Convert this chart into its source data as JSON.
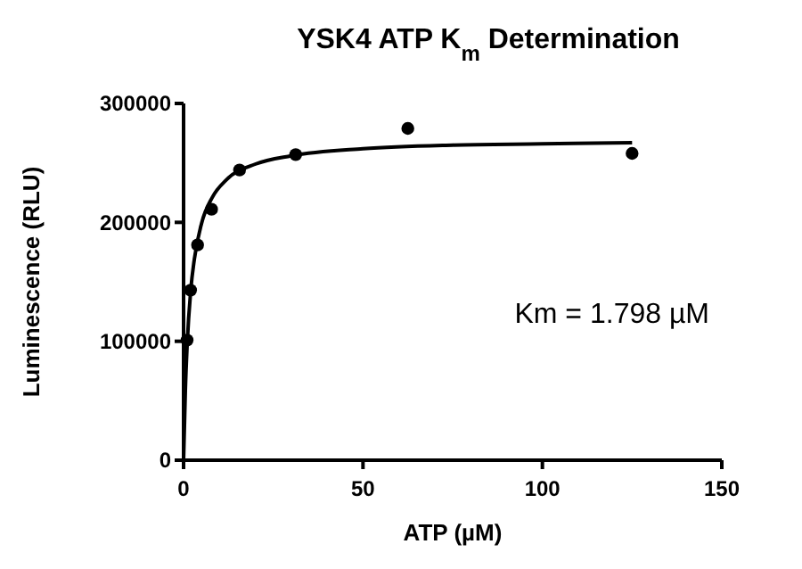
{
  "chart_data": {
    "type": "scatter",
    "title": "YSK4 ATP K$_{m}$ Determination",
    "xlabel": "ATP (µM)",
    "ylabel": "Luminescence (RLU)",
    "xlim": [
      0,
      150
    ],
    "xticks": [
      0,
      50,
      100,
      150
    ],
    "ylim": [
      0,
      300000
    ],
    "yticks": [
      0,
      100000,
      200000,
      300000
    ],
    "grid": false,
    "marker": "circle",
    "series": [
      {
        "color": "#000000",
        "x": [
          0.98,
          1.95,
          3.9,
          7.8,
          15.6,
          31.25,
          62.5,
          125
        ],
        "values": [
          101000,
          143000,
          181000,
          211000,
          244000,
          257000,
          279000,
          258000
        ]
      },
      {
        "type": "line",
        "color": "#000000",
        "marker": "none",
        "x": [
          0,
          0.5,
          1,
          2,
          3,
          5,
          8,
          12,
          20,
          30,
          50,
          75,
          100,
          125
        ],
        "values": [
          0,
          59000,
          97000,
          143000,
          169000,
          199000,
          221000,
          236000,
          249000,
          256000,
          262000,
          265000,
          266000,
          267000
        ]
      }
    ],
    "annotations": [
      {
        "text": "Km = 1.798 µM"
      }
    ]
  }
}
